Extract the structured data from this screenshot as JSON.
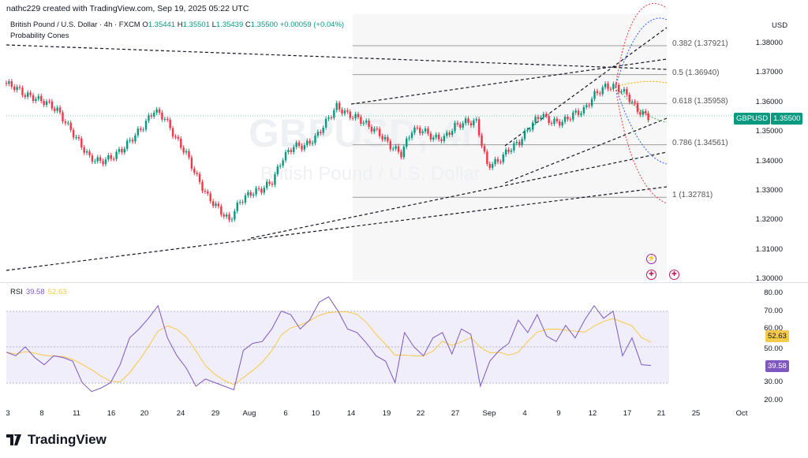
{
  "header": {
    "credit": "nathc229 created with TradingView.com, Sep 19, 2025 05:22 UTC",
    "symbol_desc": "British Pound / U.S. Dollar · 4h · FXCM",
    "open_label": "O",
    "open": "1.35441",
    "high_label": "H",
    "high": "1.35501",
    "low_label": "L",
    "low": "1.35439",
    "close_label": "C",
    "close": "1.35500",
    "change": "+0.00059 (+0.04%)",
    "study": "Probability Cones"
  },
  "watermark": {
    "symbol": "GBPUSD, 4h",
    "name": "British Pound / U.S. Dollar"
  },
  "price_axis": {
    "currency": "USD",
    "ticks": [
      "1.38000",
      "1.37000",
      "1.36000",
      "1.35000",
      "1.34000",
      "1.33000",
      "1.32000",
      "1.31000",
      "1.30000"
    ]
  },
  "price_tag": {
    "symbol": "GBPUSD",
    "value": "1.35500"
  },
  "fib_levels": [
    {
      "label": "0.382 (1.37921)",
      "price": 1.37921
    },
    {
      "label": "0.5 (1.36940)",
      "price": 1.3694
    },
    {
      "label": "0.618 (1.35958)",
      "price": 1.35958
    },
    {
      "label": "0.786 (1.34561)",
      "price": 1.34561
    },
    {
      "label": "1 (1.32781)",
      "price": 1.32781
    }
  ],
  "rsi": {
    "label": "RSI",
    "value": "39.58",
    "ma_value": "52.63",
    "ticks": [
      "80.00",
      "70.00",
      "60.00",
      "50.00",
      "30.00",
      "20.00"
    ]
  },
  "x_axis": {
    "ticks": [
      "3",
      "8",
      "11",
      "16",
      "20",
      "24",
      "29",
      "Aug",
      "6",
      "10",
      "14",
      "19",
      "22",
      "27",
      "Sep",
      "4",
      "9",
      "12",
      "17",
      "21",
      "25",
      "Oct"
    ]
  },
  "brand": "TradingView",
  "colors": {
    "up": "#089981",
    "down": "#f23645",
    "rsi": "#7e57c2",
    "rsi_ma": "#f7c948"
  },
  "chart_data": {
    "type": "line",
    "title": "GBPUSD 4h",
    "ylim": [
      1.3,
      1.385
    ],
    "close_series": [
      1.3666,
      1.3653,
      1.3626,
      1.3613,
      1.3599,
      1.3573,
      1.3519,
      1.3466,
      1.3412,
      1.3399,
      1.3412,
      1.3439,
      1.3479,
      1.3519,
      1.3573,
      1.3546,
      1.3479,
      1.3426,
      1.3345,
      1.3279,
      1.3239,
      1.3198,
      1.3265,
      1.3292,
      1.3305,
      1.3332,
      1.3412,
      1.3452,
      1.3452,
      1.3479,
      1.3533,
      1.3586,
      1.3559,
      1.3546,
      1.3519,
      1.3493,
      1.3452,
      1.3426,
      1.3506,
      1.3506,
      1.3479,
      1.3479,
      1.3519,
      1.3533,
      1.3533,
      1.3386,
      1.3399,
      1.3439,
      1.3466,
      1.3519,
      1.3559,
      1.3533,
      1.3533,
      1.3559,
      1.3573,
      1.3626,
      1.3653,
      1.3653,
      1.3626,
      1.3573,
      1.355
    ],
    "rsi_ylim": [
      15,
      85
    ],
    "rsi_series": [
      47,
      45,
      50,
      44,
      40,
      45,
      44,
      42,
      30,
      25,
      27,
      30,
      40,
      55,
      60,
      66,
      73,
      55,
      45,
      38,
      28,
      32,
      30,
      28,
      26,
      48,
      52,
      53,
      60,
      70,
      68,
      60,
      65,
      75,
      78,
      70,
      60,
      58,
      52,
      45,
      42,
      30,
      58,
      50,
      45,
      55,
      58,
      46,
      60,
      57,
      28,
      42,
      48,
      52,
      65,
      58,
      68,
      56,
      53,
      62,
      55,
      65,
      73,
      66,
      70,
      45,
      55,
      40,
      39.58
    ]
  }
}
